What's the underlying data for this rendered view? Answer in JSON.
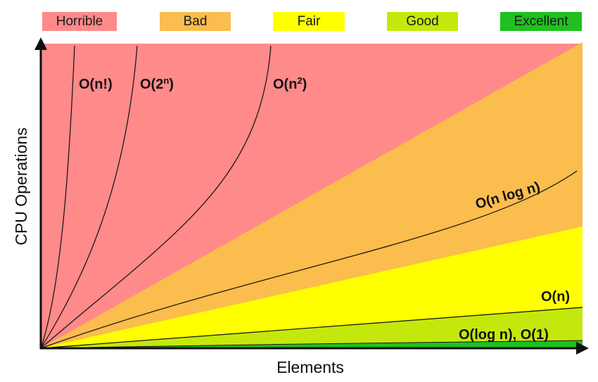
{
  "chart_data": {
    "type": "area",
    "title": "",
    "xlabel": "Elements",
    "ylabel": "CPU Operations",
    "grid": false,
    "legend_position": "top",
    "legend": [
      {
        "label": "Horrible",
        "color": "#ff8a8a"
      },
      {
        "label": "Bad",
        "color": "#fbbd4d"
      },
      {
        "label": "Fair",
        "color": "#ffff00"
      },
      {
        "label": "Good",
        "color": "#c5e80c"
      },
      {
        "label": "Excellent",
        "color": "#1fc01f"
      }
    ],
    "curves": [
      {
        "label_parts": [
          {
            "text": "O(n!)"
          }
        ],
        "zone": "Horrible"
      },
      {
        "label_parts": [
          {
            "text": "O(2"
          },
          {
            "text": "n",
            "sup": true
          },
          {
            "text": ")"
          }
        ],
        "zone": "Horrible"
      },
      {
        "label_parts": [
          {
            "text": "O(n"
          },
          {
            "text": "2",
            "sup": true
          },
          {
            "text": ")"
          }
        ],
        "zone": "Horrible"
      },
      {
        "label_parts": [
          {
            "text": "O(n log n)"
          }
        ],
        "zone": "Bad"
      },
      {
        "label_parts": [
          {
            "text": "O(n)"
          }
        ],
        "zone": "Fair"
      },
      {
        "label_parts": [
          {
            "text": "O(log n), O(1)"
          }
        ],
        "zone": "Good"
      }
    ]
  }
}
